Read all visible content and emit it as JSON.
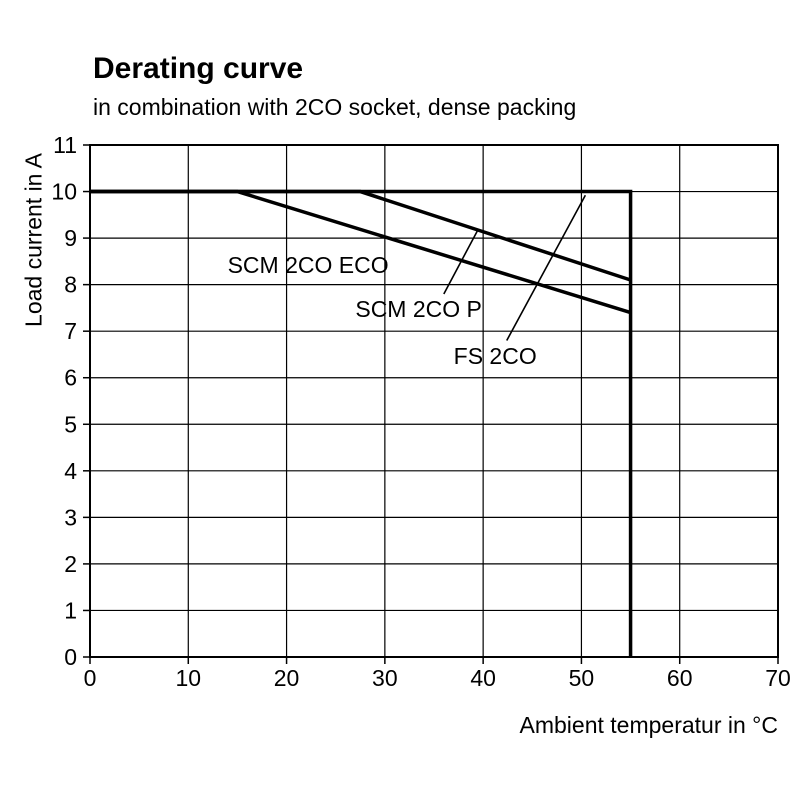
{
  "chart_data": {
    "type": "line",
    "title": "Derating curve",
    "subtitle": "in combination with 2CO socket, dense packing",
    "xlabel": "Ambient temperatur in °C",
    "ylabel": "Load current in A",
    "xlim": [
      0,
      70
    ],
    "ylim": [
      0,
      11
    ],
    "xticks": [
      0,
      10,
      20,
      30,
      40,
      50,
      60,
      70
    ],
    "yticks": [
      0,
      1,
      2,
      3,
      4,
      5,
      6,
      7,
      8,
      9,
      10,
      11
    ],
    "grid": true,
    "line_color": "#000000",
    "background": "#ffffff",
    "series": [
      {
        "name": "FS 2CO",
        "points": [
          [
            0,
            10
          ],
          [
            55,
            10
          ],
          [
            55,
            0
          ]
        ]
      },
      {
        "name": "SCM 2CO ECO",
        "points": [
          [
            0,
            10
          ],
          [
            15,
            10
          ],
          [
            55,
            7.4
          ]
        ]
      },
      {
        "name": "SCM 2CO P",
        "points": [
          [
            0,
            10
          ],
          [
            27.5,
            10
          ],
          [
            55,
            8.1
          ]
        ]
      }
    ],
    "annotations": [
      {
        "text": "SCM 2CO ECO",
        "x": 14,
        "y": 8.25,
        "leader": null
      },
      {
        "text": "SCM 2CO P",
        "x": 27,
        "y": 7.3,
        "leader": {
          "from": [
            36,
            7.8
          ],
          "to": [
            39.4,
            9.15
          ]
        }
      },
      {
        "text": "FS 2CO",
        "x": 37,
        "y": 6.3,
        "leader": {
          "from": [
            42.4,
            6.8
          ],
          "to": [
            50.4,
            9.92
          ]
        }
      }
    ],
    "legend_position": "inline-annotations"
  }
}
